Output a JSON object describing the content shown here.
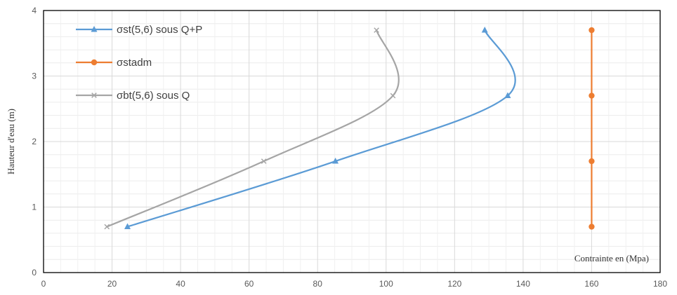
{
  "chart_data": {
    "type": "line",
    "xlabel": "Contrainte en (Mpa)",
    "ylabel": "Hauteur d'eau (m)",
    "xlim": [
      0,
      180
    ],
    "ylim": [
      0,
      4
    ],
    "xticks": [
      0,
      20,
      40,
      60,
      80,
      100,
      120,
      140,
      160,
      180
    ],
    "yticks": [
      0,
      1,
      2,
      3,
      4
    ],
    "grid": true,
    "legend_position": "top-left",
    "series": [
      {
        "name": "σst(5,6) sous Q+P",
        "color": "#5B9BD5",
        "marker": "triangle",
        "smooth": true,
        "points": [
          [
            24.5,
            0.7
          ],
          [
            85.2,
            1.7
          ],
          [
            135.5,
            2.7
          ],
          [
            128.8,
            3.7
          ]
        ]
      },
      {
        "name": "σstadm",
        "color": "#ED7D31",
        "marker": "circle",
        "smooth": false,
        "points": [
          [
            160,
            0.7
          ],
          [
            160,
            1.7
          ],
          [
            160,
            2.7
          ],
          [
            160,
            3.7
          ]
        ]
      },
      {
        "name": "σbt(5,6) sous Q",
        "color": "#A5A5A5",
        "marker": "x",
        "smooth": true,
        "points": [
          [
            18.5,
            0.7
          ],
          [
            64.3,
            1.7
          ],
          [
            102.0,
            2.7
          ],
          [
            97.2,
            3.7
          ]
        ]
      }
    ]
  }
}
